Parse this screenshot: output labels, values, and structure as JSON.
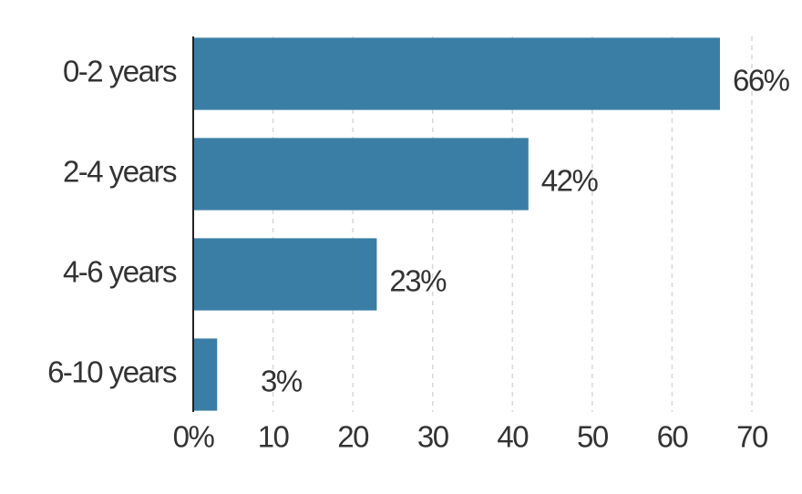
{
  "chart_data": {
    "type": "bar",
    "orientation": "horizontal",
    "categories": [
      "0-2 years",
      "2-4 years",
      "4-6 years",
      "6-10 years"
    ],
    "values": [
      66,
      42,
      23,
      3
    ],
    "value_labels": [
      "66%",
      "42%",
      "23%",
      "3%"
    ],
    "color": "#3a7ea6",
    "xlim": [
      0,
      70
    ],
    "xticks": [
      {
        "value": 0,
        "label": "0%"
      },
      10,
      20,
      30,
      40,
      50,
      60,
      70
    ],
    "grid": true
  }
}
